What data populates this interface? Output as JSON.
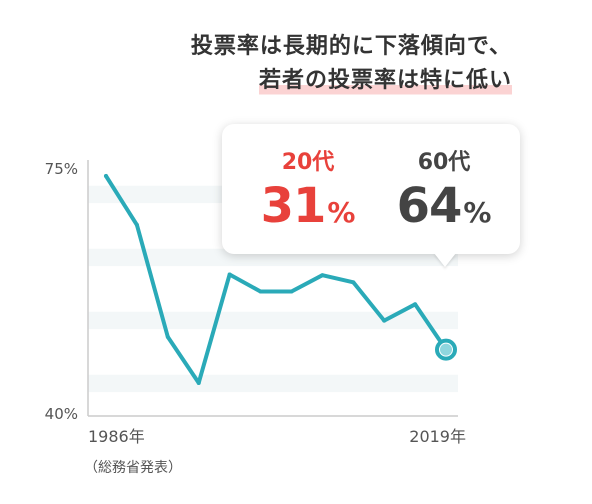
{
  "headline": {
    "line1": "投票率は長期的に下落傾向で、",
    "line2": "若者の投票率は特に低い"
  },
  "callout": {
    "young": {
      "label": "20代",
      "value": "31",
      "unit": "%"
    },
    "old": {
      "label": "60代",
      "value": "64",
      "unit": "%"
    }
  },
  "colors": {
    "line": "#2aaab8",
    "young": "#e8413b",
    "old": "#444444",
    "highlight": "#fbd3d3",
    "band": "#f3f7f8"
  },
  "chart_data": {
    "type": "line",
    "y_tick_labels": [
      "75%",
      "40%"
    ],
    "x_tick_labels": [
      "1986年",
      "2019年"
    ],
    "source_note": "（総務省発表）",
    "ylim": [
      40,
      75
    ],
    "grid": "horizontal bands",
    "series": [
      {
        "values": [
          73.3,
          66.4,
          50.6,
          44.1,
          59.4,
          57.0,
          57.0,
          59.3,
          58.3,
          52.9,
          55.2,
          48.8
        ]
      }
    ],
    "end_marker": true
  }
}
